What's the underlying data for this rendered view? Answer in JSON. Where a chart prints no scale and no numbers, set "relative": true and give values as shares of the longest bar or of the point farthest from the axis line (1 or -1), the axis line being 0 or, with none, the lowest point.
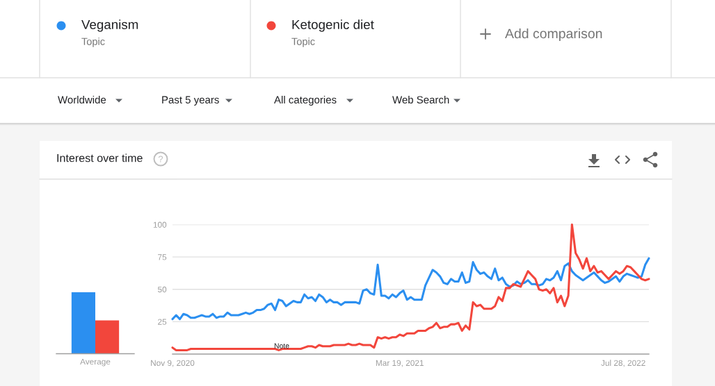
{
  "chart_data": [
    {
      "type": "bar",
      "categories": [
        "Average"
      ],
      "relative": true,
      "series": [
        {
          "color": "#2b8ff0",
          "values": [
            1
          ]
        },
        {
          "color": "#f2463c",
          "values": [
            0.54
          ]
        }
      ]
    },
    {
      "type": "line",
      "title": "Interest over time",
      "legend": "top",
      "grid": "y",
      "categories": [
        "Nov 9, 2020",
        null,
        null,
        null,
        null,
        null,
        null,
        null,
        null,
        null,
        null,
        null,
        null,
        null,
        null,
        null,
        null,
        null,
        null,
        null,
        null,
        null,
        null,
        null,
        null,
        null,
        null,
        null,
        null,
        null,
        null,
        null,
        null,
        null,
        null,
        null,
        null,
        null,
        null,
        null,
        null,
        null,
        null,
        null,
        null,
        null,
        null,
        null,
        null,
        null,
        null,
        null,
        null,
        null,
        null,
        null,
        null,
        null,
        null,
        null,
        null,
        null,
        "Mar 19, 2021",
        null,
        null,
        null,
        null,
        null,
        null,
        null,
        null,
        null,
        null,
        null,
        null,
        null,
        null,
        null,
        null,
        null,
        null,
        null,
        null,
        null,
        null,
        null,
        null,
        null,
        null,
        null,
        null,
        null,
        null,
        null,
        null,
        null,
        null,
        null,
        null,
        null,
        null,
        null,
        null,
        null,
        null,
        null,
        null,
        null,
        null,
        null,
        null,
        null,
        null,
        null,
        null,
        null,
        null,
        null,
        null,
        null,
        null,
        null,
        null,
        "Jul 28, 2022",
        null,
        null,
        null,
        null,
        null,
        null,
        null
      ],
      "ylim": [
        0,
        100
      ],
      "yticks": [
        25,
        50,
        75,
        100
      ],
      "series": [
        {
          "name": "Veganism",
          "color": "#2b8ff0",
          "values": [
            27,
            30,
            27,
            31,
            30,
            28,
            28,
            29,
            30,
            29,
            29,
            31,
            28,
            29,
            29,
            32,
            30,
            30,
            30,
            31,
            32,
            31,
            32,
            34,
            34,
            35,
            38,
            39,
            34,
            42,
            41,
            37,
            39,
            41,
            40,
            40,
            46,
            43,
            44,
            41,
            46,
            44,
            40,
            42,
            40,
            40,
            38,
            40,
            40,
            40,
            40,
            39,
            49,
            50,
            47,
            46,
            69,
            45,
            45,
            43,
            46,
            44,
            47,
            49,
            42,
            44,
            42,
            42,
            42,
            53,
            59,
            65,
            63,
            60,
            55,
            54,
            58,
            56,
            56,
            63,
            55,
            56,
            71,
            65,
            62,
            63,
            60,
            58,
            66,
            57,
            59,
            54,
            52,
            53,
            56,
            54,
            55,
            57,
            54,
            54,
            53,
            54,
            58,
            57,
            59,
            64,
            57,
            68,
            70,
            64,
            61,
            59,
            57,
            59,
            61,
            63,
            60,
            57,
            55,
            56,
            58,
            60,
            56,
            60,
            62,
            61,
            60,
            59,
            60,
            69,
            74
          ]
        },
        {
          "name": "Ketogenic diet",
          "color": "#f2463c",
          "values": [
            5,
            3,
            3,
            3,
            3,
            4,
            4,
            4,
            4,
            4,
            4,
            4,
            4,
            4,
            4,
            4,
            4,
            4,
            4,
            4,
            4,
            4,
            4,
            4,
            4,
            4,
            4,
            4,
            4,
            3,
            4,
            4,
            4,
            4,
            4,
            4,
            5,
            6,
            6,
            5,
            7,
            6,
            6,
            6,
            7,
            7,
            7,
            7,
            8,
            7,
            7,
            8,
            7,
            7,
            7,
            5,
            13,
            12,
            13,
            12,
            13,
            13,
            15,
            14,
            16,
            16,
            16,
            18,
            18,
            18,
            20,
            21,
            24,
            20,
            21,
            21,
            23,
            23,
            24,
            18,
            22,
            19,
            40,
            37,
            38,
            35,
            35,
            35,
            37,
            44,
            41,
            51,
            51,
            54,
            53,
            52,
            58,
            64,
            61,
            58,
            50,
            49,
            50,
            47,
            51,
            40,
            45,
            37,
            45,
            100,
            78,
            73,
            66,
            74,
            64,
            68,
            63,
            64,
            61,
            58,
            61,
            64,
            62,
            64,
            68,
            67,
            64,
            61,
            58,
            57,
            58
          ]
        }
      ],
      "annotations": [
        "Topic",
        "Topic",
        "Add comparison",
        "Worldwide",
        "Past 5 years",
        "All categories",
        "Web Search",
        "Note"
      ]
    }
  ]
}
